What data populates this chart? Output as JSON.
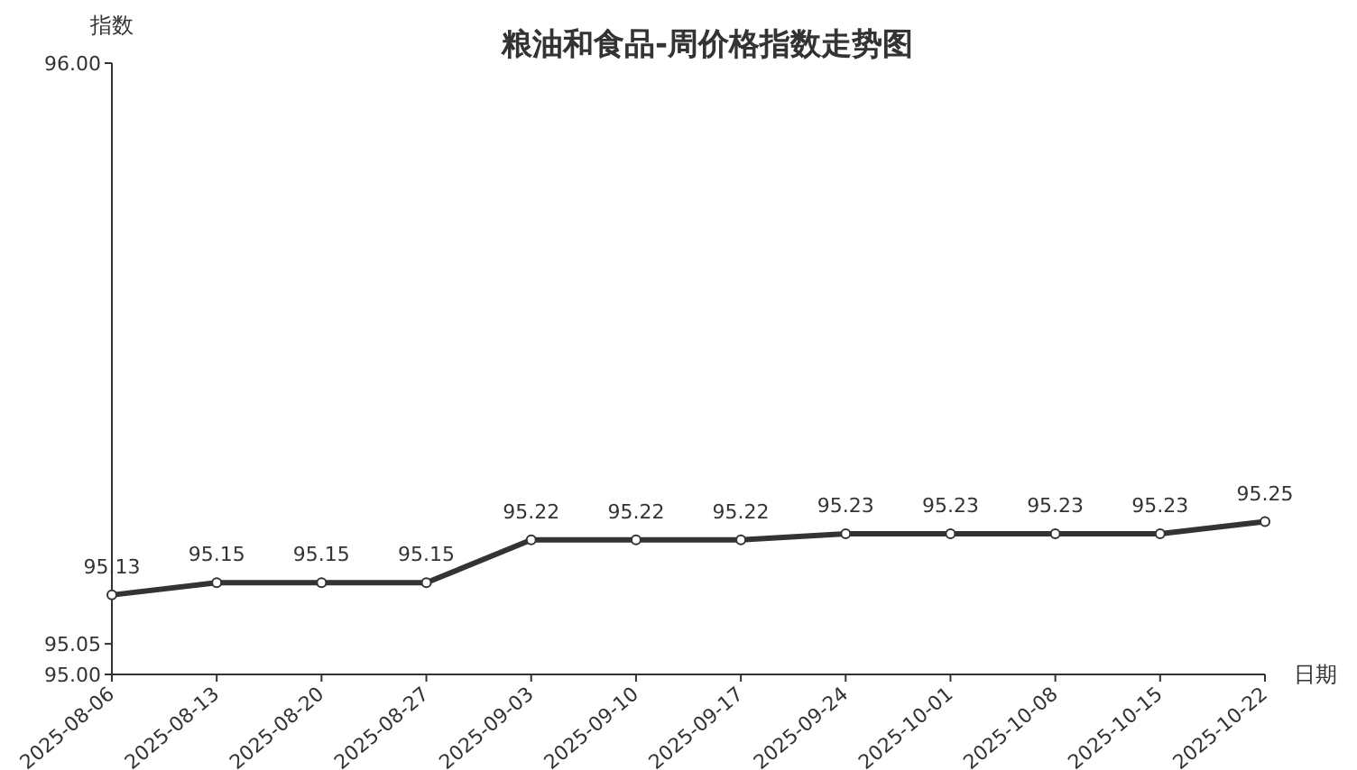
{
  "chart_data": {
    "type": "line",
    "title": "粮油和食品-周价格指数走势图",
    "xlabel": "日期",
    "ylabel": "指数",
    "categories": [
      "2025-08-06",
      "2025-08-13",
      "2025-08-20",
      "2025-08-27",
      "2025-09-03",
      "2025-09-10",
      "2025-09-17",
      "2025-09-24",
      "2025-10-01",
      "2025-10-08",
      "2025-10-15",
      "2025-10-22"
    ],
    "series": [
      {
        "color": "#333333",
        "values": [
          95.13,
          95.15,
          95.15,
          95.15,
          95.22,
          95.22,
          95.22,
          95.23,
          95.23,
          95.23,
          95.23,
          95.25
        ]
      }
    ],
    "ylim": [
      95,
      96
    ],
    "yticks": [
      {
        "value": 95,
        "label": "95.00"
      },
      {
        "value": 95.05,
        "label": "95.05"
      },
      {
        "value": 96,
        "label": "96.00"
      }
    ],
    "data_labels": true,
    "marker": "circle",
    "line_style": "solid"
  }
}
